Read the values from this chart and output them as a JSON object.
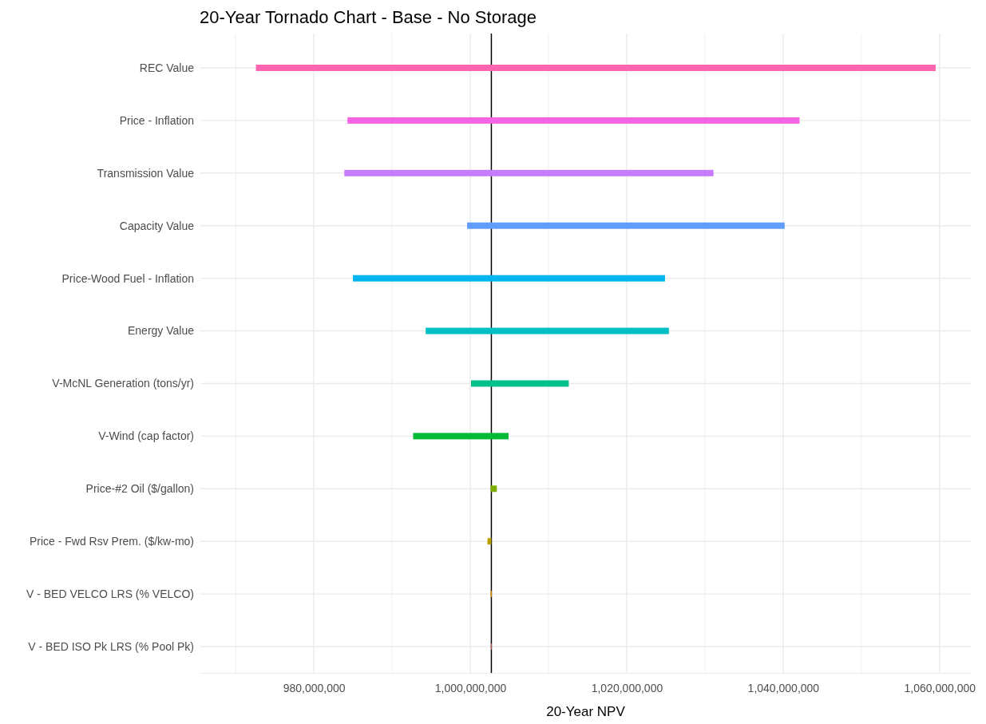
{
  "chart_data": {
    "type": "bar",
    "orientation": "horizontal",
    "title": "20-Year Tornado Chart - Base - No Storage",
    "xlabel": "20-Year NPV",
    "categories": [
      "REC Value",
      "Price - Inflation",
      "Transmission Value",
      "Capacity Value",
      "Price-Wood Fuel - Inflation",
      "Energy Value",
      "V-McNL Generation (tons/yr)",
      "V-Wind (cap factor)",
      "Price-#2 Oil ($/gallon)",
      "Price - Fwd Rsv Prem. ($/kw-mo)",
      "V - BED VELCO LRS (% VELCO)",
      "V - BED ISO Pk LRS (% Pool Pk)"
    ],
    "base": [
      972600000,
      984300000,
      983900000,
      999600000,
      985000000,
      994300000,
      1000100000,
      992700000,
      1002600000,
      1002200000,
      1002600000,
      1002640000
    ],
    "values": [
      86900000,
      57800000,
      47200000,
      40600000,
      39900000,
      31100000,
      12500000,
      12200000,
      800000,
      500000,
      150000,
      60000
    ],
    "colors": [
      "#ff64b0",
      "#f564e3",
      "#c77cff",
      "#619cff",
      "#00b4f0",
      "#00bfc4",
      "#00c08b",
      "#00ba38",
      "#7cae00",
      "#b79f00",
      "#de8c00",
      "#f8766d"
    ],
    "xlim": [
      965500000,
      1064000000
    ],
    "xticks": [
      {
        "value": 970000000,
        "label": null
      },
      {
        "value": 980000000,
        "label": "980,000,000"
      },
      {
        "value": 990000000,
        "label": null
      },
      {
        "value": 1000000000,
        "label": "1,000,000,000"
      },
      {
        "value": 1010000000,
        "label": null
      },
      {
        "value": 1020000000,
        "label": "1,020,000,000"
      },
      {
        "value": 1030000000,
        "label": null
      },
      {
        "value": 1040000000,
        "label": "1,040,000,000"
      },
      {
        "value": 1050000000,
        "label": null
      },
      {
        "value": 1060000000,
        "label": "1,060,000,000"
      }
    ],
    "grid": true,
    "ref_lines": [
      {
        "axis": "x",
        "value": 1002700000,
        "color": "#000000"
      }
    ]
  }
}
